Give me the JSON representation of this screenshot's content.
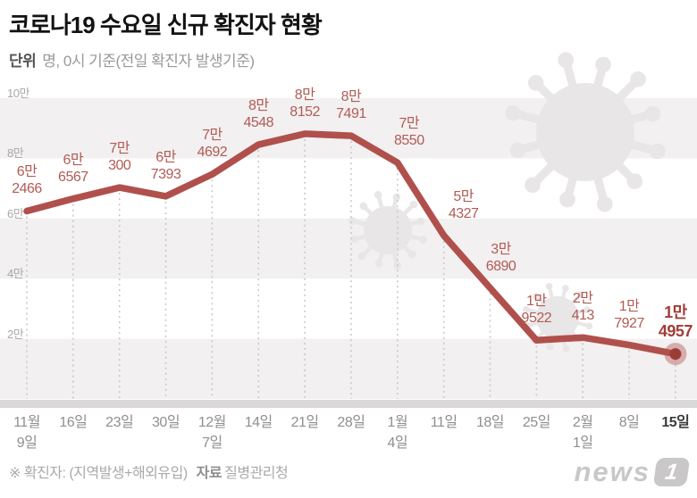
{
  "chart_data": {
    "type": "line",
    "title": "코로나19 수요일 신규 확진자 현황",
    "subtitle_bold": "단위",
    "subtitle": "명, 0시 기준(전일 확진자 발생기준)",
    "x_labels": [
      [
        "11월",
        "9일"
      ],
      [
        "16일"
      ],
      [
        "23일"
      ],
      [
        "30일"
      ],
      [
        "12월",
        "7일"
      ],
      [
        "14일"
      ],
      [
        "21일"
      ],
      [
        "28일"
      ],
      [
        "1월",
        "4일"
      ],
      [
        "11일"
      ],
      [
        "18일"
      ],
      [
        "25일"
      ],
      [
        "2월",
        "1일"
      ],
      [
        "8일"
      ],
      [
        "15일"
      ]
    ],
    "values": [
      62466,
      66567,
      70300,
      67393,
      74692,
      84548,
      88152,
      87491,
      78550,
      54327,
      36890,
      19522,
      20413,
      17927,
      14957
    ],
    "point_labels": [
      [
        "6만",
        "2466"
      ],
      [
        "6만",
        "6567"
      ],
      [
        "7만",
        "300"
      ],
      [
        "6만",
        "7393"
      ],
      [
        "7만",
        "4692"
      ],
      [
        "8만",
        "4548"
      ],
      [
        "8만",
        "8152"
      ],
      [
        "8만",
        "7491"
      ],
      [
        "7만",
        "8550"
      ],
      [
        "5만",
        "4327"
      ],
      [
        "3만",
        "6890"
      ],
      [
        "1만",
        "9522"
      ],
      [
        "2만",
        "413"
      ],
      [
        "1만",
        "7927"
      ],
      [
        "1만",
        "4957"
      ]
    ],
    "emphasized_index": 14,
    "y_ticks": [
      {
        "label": "10만",
        "value": 100000
      },
      {
        "label": "8만",
        "value": 80000
      },
      {
        "label": "6만",
        "value": 60000
      },
      {
        "label": "4만",
        "value": 40000
      },
      {
        "label": "2만",
        "value": 20000
      }
    ],
    "ylim": [
      0,
      100000
    ],
    "grid": "alternating horizontal bands, dotted vertical guides per point",
    "legend": "none",
    "line_color": "#b0504c",
    "label_color": "#b25b55",
    "emphasis_color": "#a23d38",
    "marker_inner_color": "#9c3c38",
    "band_color": "#f2f0f0",
    "axis_bar_color": "#d9d7d7",
    "guide_color": "#c9c9c9",
    "watermark_color": "#e8e6e6"
  },
  "footer": {
    "note": "※ 확진자: (지역발생+해외유입)",
    "source_label": "자료",
    "source": "질병관리청",
    "logo_text": "news",
    "logo_badge": "1"
  }
}
